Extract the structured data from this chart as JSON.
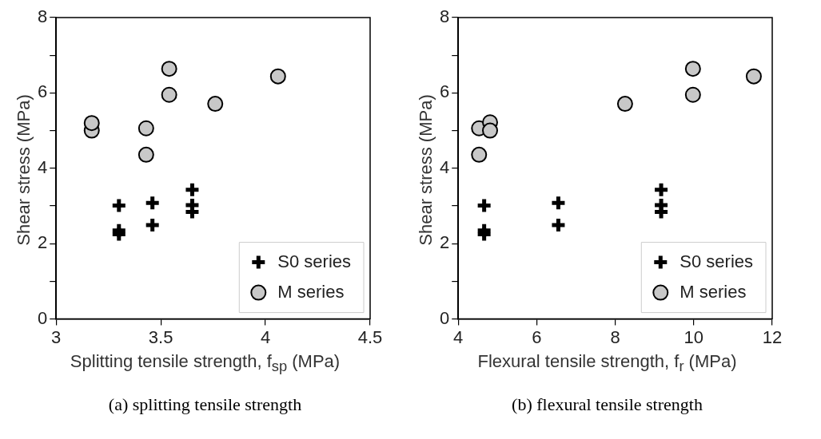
{
  "chart_data": [
    {
      "type": "scatter",
      "xlabel": "Splitting tensile strength, f$_{sp}$ (MPa)",
      "ylabel": "Shear stress (MPa)",
      "annotations": [
        "(a) splitting tensile strength"
      ],
      "xlim": [
        3,
        4.5
      ],
      "xticks": [
        3,
        3.5,
        4,
        4.5
      ],
      "ylim": [
        0,
        8
      ],
      "yticks": [
        0,
        {
          "value": 1,
          "label": null
        },
        2,
        {
          "value": 3,
          "label": null
        },
        4,
        {
          "value": 5,
          "label": null
        },
        6,
        {
          "value": 7,
          "label": null
        },
        8
      ],
      "grid": false,
      "legend": "bottom right",
      "series": [
        {
          "name": "S0 series",
          "color": "#000000",
          "marker": "cross",
          "x": [
            3.3,
            3.3,
            3.3,
            3.46,
            3.46,
            3.65,
            3.65,
            3.65
          ],
          "values": [
            3.01,
            2.35,
            2.25,
            3.08,
            2.49,
            3.43,
            3.02,
            2.84
          ]
        },
        {
          "name": "M series",
          "color": "#c8c8c8",
          "marker": "circle",
          "x": [
            3.17,
            3.17,
            3.43,
            3.43,
            3.54,
            3.54,
            3.76,
            4.06
          ],
          "values": [
            5.0,
            5.2,
            5.06,
            4.36,
            6.64,
            5.95,
            5.71,
            6.44
          ]
        }
      ]
    },
    {
      "type": "scatter",
      "xlabel": "Flexural tensile strength, f$_{r}$ (MPa)",
      "ylabel": "Shear stress (MPa)",
      "annotations": [
        "(b) flexural tensile strength"
      ],
      "xlim": [
        4,
        12
      ],
      "xticks": [
        4,
        6,
        8,
        10,
        12
      ],
      "ylim": [
        0,
        8
      ],
      "yticks": [
        0,
        {
          "value": 1,
          "label": null
        },
        2,
        {
          "value": 3,
          "label": null
        },
        4,
        {
          "value": 5,
          "label": null
        },
        6,
        {
          "value": 7,
          "label": null
        },
        8
      ],
      "grid": false,
      "legend": "bottom right",
      "series": [
        {
          "name": "S0 series",
          "color": "#000000",
          "marker": "cross",
          "x": [
            4.66,
            4.66,
            4.66,
            6.55,
            6.55,
            9.17,
            9.17,
            9.17
          ],
          "values": [
            3.01,
            2.35,
            2.25,
            3.08,
            2.49,
            3.43,
            3.02,
            2.84
          ]
        },
        {
          "name": "M series",
          "color": "#c8c8c8",
          "marker": "circle",
          "x": [
            4.53,
            4.53,
            4.81,
            4.81,
            8.25,
            9.98,
            9.98,
            11.53
          ],
          "values": [
            5.06,
            4.36,
            5.22,
            5.0,
            5.71,
            5.95,
            6.64,
            6.44
          ]
        }
      ]
    }
  ]
}
